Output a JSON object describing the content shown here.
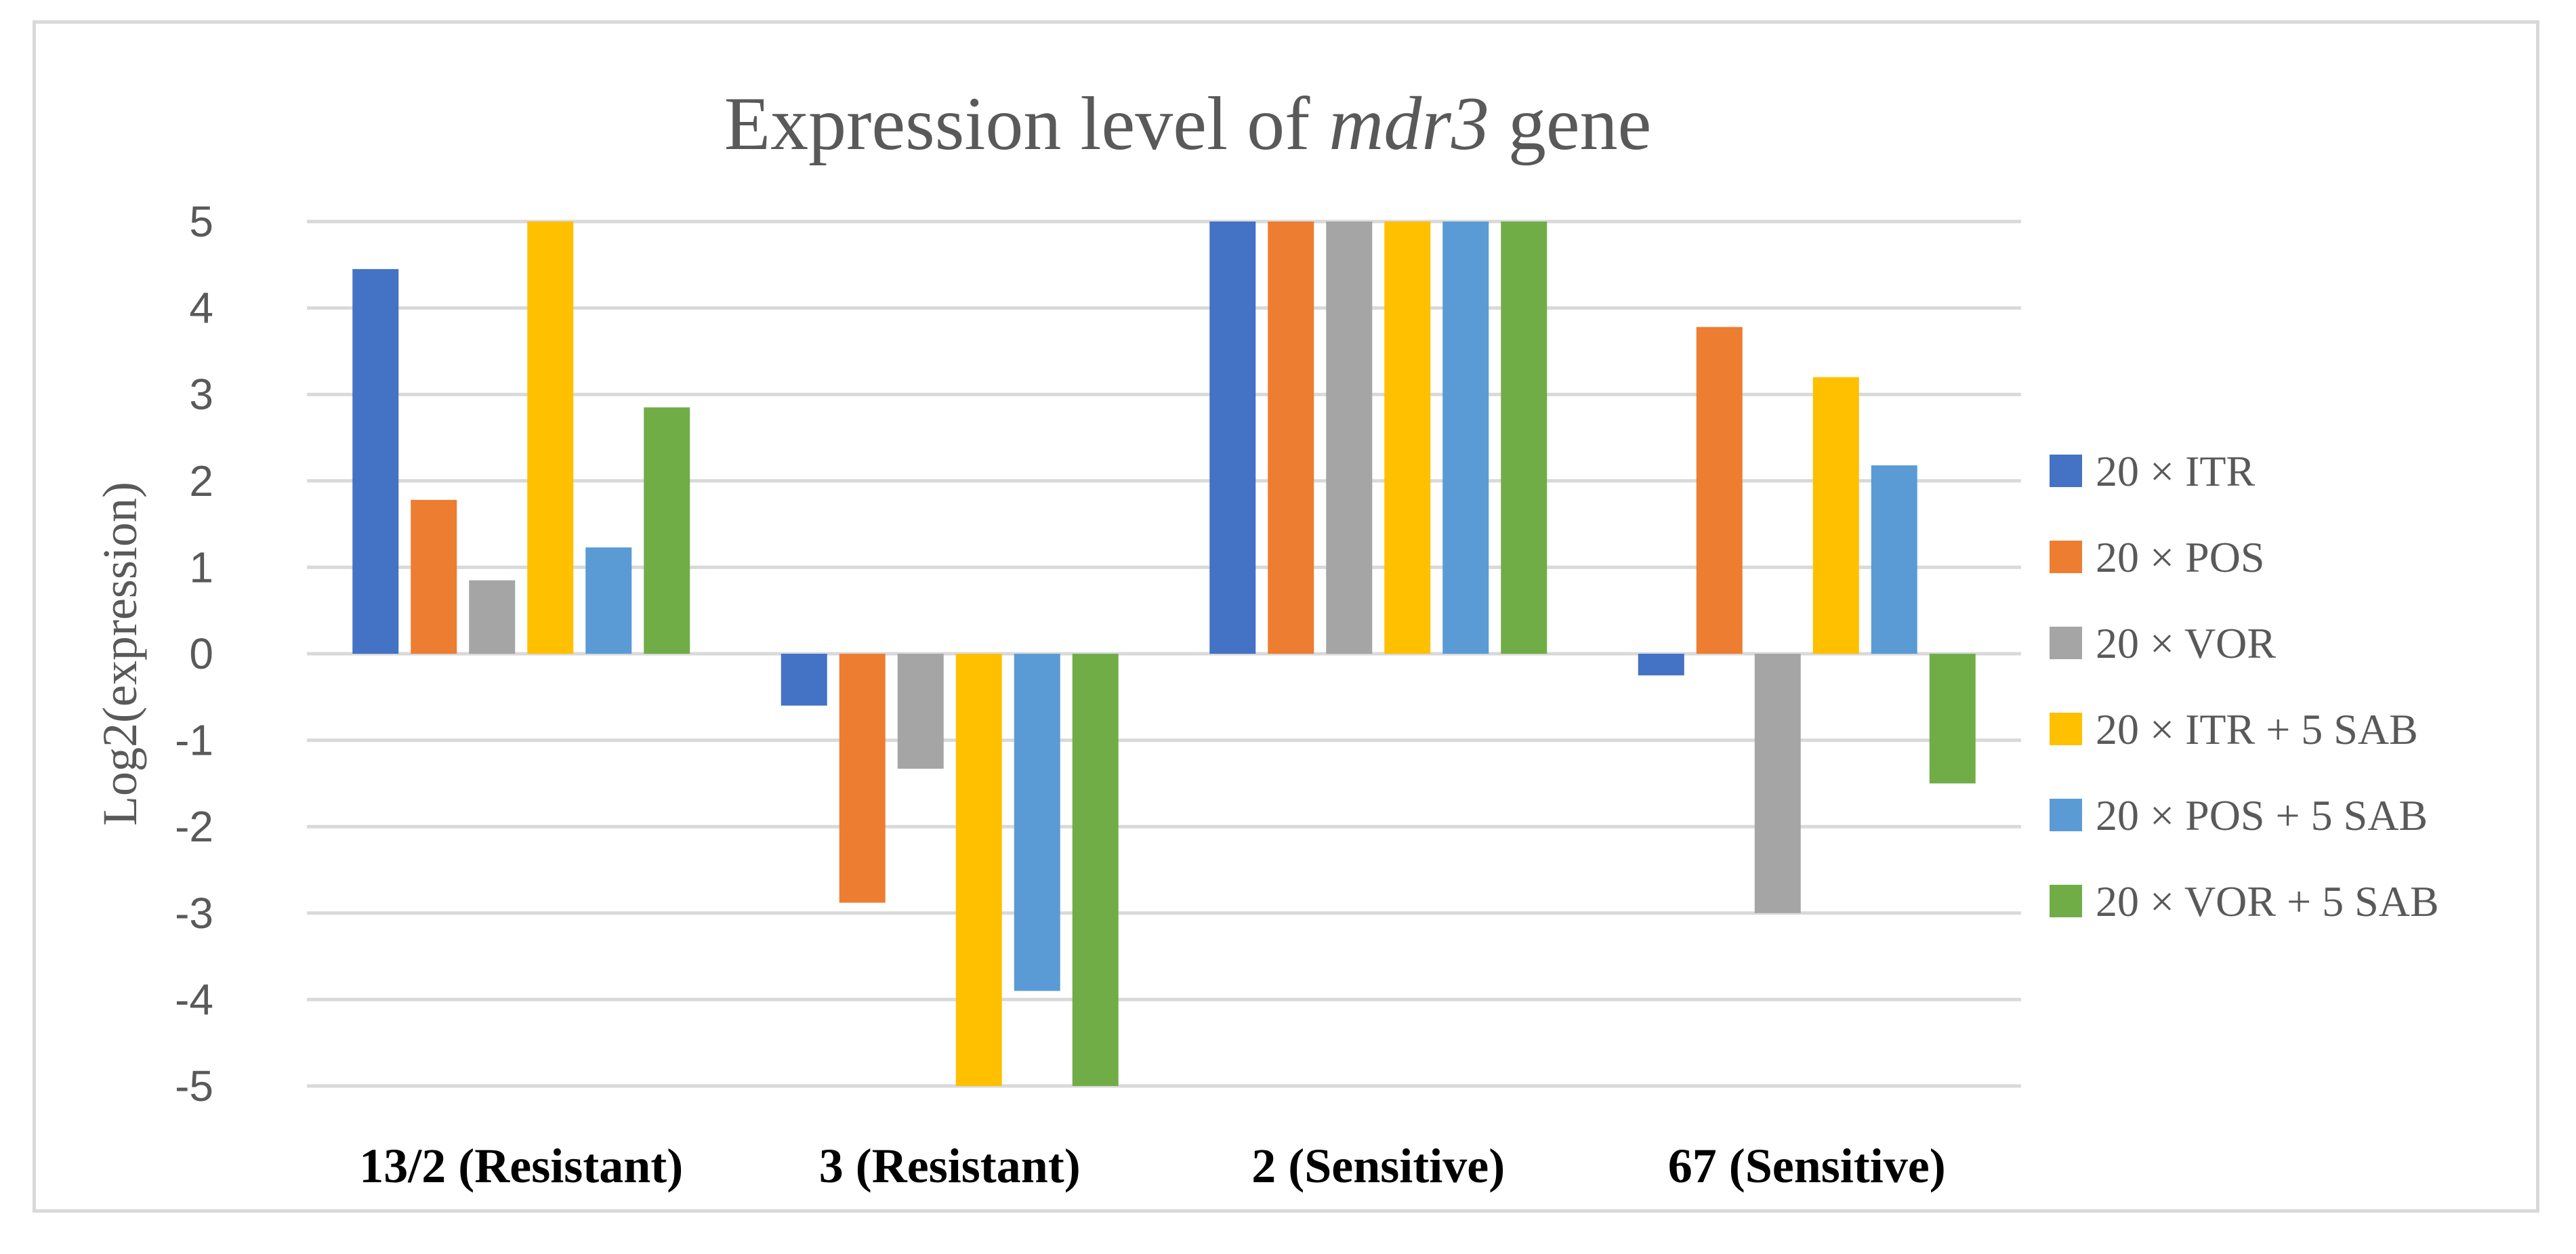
{
  "chart_data": {
    "type": "bar",
    "title": "Expression level of ",
    "title_italic": "mdr3",
    "title_suffix": " gene",
    "xlabel": "",
    "ylabel": "Log2(expression)",
    "ylim": [
      -5,
      5
    ],
    "yticks": [
      5,
      4,
      3,
      2,
      1,
      0,
      -1,
      -2,
      -3,
      -4,
      -5
    ],
    "grid": true,
    "legend_position": "right",
    "categories": [
      "13/2 (Resistant)",
      "3 (Resistant)",
      "2 (Sensitive)",
      "67 (Sensitive)"
    ],
    "series": [
      {
        "name": "20 × ITR",
        "color": "#4472C4",
        "values": [
          4.45,
          -0.6,
          5,
          -0.25
        ]
      },
      {
        "name": "20 × POS",
        "color": "#ED7D31",
        "values": [
          1.78,
          -2.88,
          5,
          3.78
        ]
      },
      {
        "name": "20 × VOR",
        "color": "#A5A5A5",
        "values": [
          0.85,
          -1.33,
          5,
          -3.0
        ]
      },
      {
        "name": "20 × ITR + 5 SAB",
        "color": "#FFC000",
        "values": [
          5,
          -5,
          5,
          3.2
        ]
      },
      {
        "name": "20 × POS + 5 SAB",
        "color": "#5B9BD5",
        "values": [
          1.23,
          -3.9,
          5,
          2.18
        ]
      },
      {
        "name": "20 × VOR + 5 SAB",
        "color": "#70AD47",
        "values": [
          2.85,
          -5,
          5,
          -1.5
        ]
      }
    ]
  }
}
